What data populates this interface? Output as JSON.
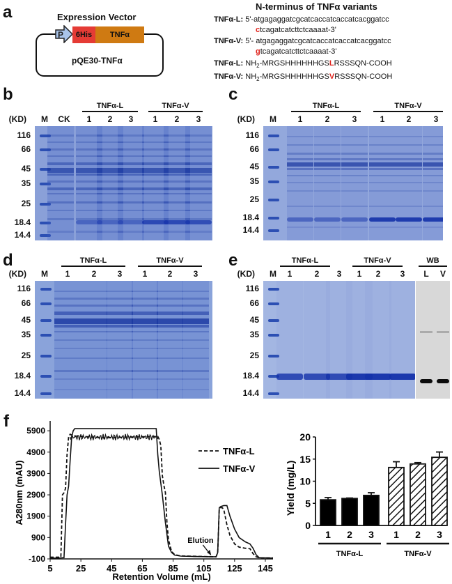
{
  "panels": {
    "a": {
      "letter": "a",
      "vector_title": "Expression Vector",
      "promoter_label": "P",
      "tag_label": "6His",
      "gene_label": "TNFα",
      "plasmid_name": "pQE30-TNFα",
      "colors": {
        "tag": "#e53b35",
        "gene": "#cf7a12",
        "promoter": "#a9c4ea"
      },
      "seq_title": "N-terminus of TNFα variants",
      "sequences": [
        {
          "label": "TNFα-L:",
          "line1": "5'-atgagaggatcgcatcaccatcaccatcacggatcc",
          "mut": "c",
          "line2": "tcagatcatcttctcaaaat-3'"
        },
        {
          "label": "TNFα-V:",
          "line1": "5'- atgagaggatcgcatcaccatcaccatcacggatcc",
          "mut": "g",
          "line2": "tcagatcatcttctcaaaat-3'"
        }
      ],
      "peptides": [
        {
          "label": "TNFα-L:",
          "prefix": "NH",
          "sub": "2",
          "pre": "-MRGSHHHHHHGS",
          "mut": "L",
          "post": "RSSSQN-COOH"
        },
        {
          "label": "TNFα-V:",
          "prefix": "NH",
          "sub": "2",
          "pre": "-MRGSHHHHHHGS",
          "mut": "V",
          "post": "RSSSQN-COOH"
        }
      ]
    },
    "b": {
      "letter": "b",
      "unit": "(KD)",
      "marker": "M",
      "ck": "CK",
      "groups": [
        "TNFα-L",
        "TNFα-V"
      ],
      "lanes": [
        "1",
        "2",
        "3",
        "1",
        "2",
        "3"
      ]
    },
    "c": {
      "letter": "c",
      "unit": "(KD)",
      "marker": "M",
      "groups": [
        "TNFα-L",
        "TNFα-V"
      ],
      "lanes": [
        "1",
        "2",
        "3",
        "1",
        "2",
        "3"
      ]
    },
    "d": {
      "letter": "d",
      "unit": "(KD)",
      "marker": "M",
      "groups": [
        "TNFα-L",
        "TNFα-V"
      ],
      "lanes": [
        "1",
        "2",
        "3",
        "1",
        "2",
        "3"
      ]
    },
    "e": {
      "letter": "e",
      "unit": "(KD)",
      "marker": "M",
      "groups": [
        "TNFα-L",
        "TNFα-V"
      ],
      "lanes": [
        "1",
        "2",
        "3",
        "1",
        "2",
        "3"
      ],
      "wb_title": "WB",
      "wb_lanes": [
        "L",
        "V"
      ]
    },
    "f": {
      "letter": "f"
    }
  },
  "mw_markers": [
    "116",
    "66",
    "45",
    "35",
    "25",
    "18.4",
    "14.4"
  ],
  "chart_data": [
    {
      "type": "line",
      "title": "",
      "xlabel": "Retention Volume (mL)",
      "ylabel": "A280nm (mAU)",
      "xlim": [
        5,
        150
      ],
      "ylim": [
        -100,
        6100
      ],
      "xticks": [
        5,
        25,
        45,
        65,
        85,
        105,
        125,
        145
      ],
      "yticks": [
        -100,
        900,
        1900,
        2900,
        3900,
        4900,
        5900
      ],
      "grid": false,
      "legend_position": "upper-right",
      "annotation": {
        "text": "Elution",
        "x": 108,
        "y": 0
      },
      "series": [
        {
          "name": "TNFα-L",
          "style": "dashed",
          "x": [
            5,
            9,
            12,
            13,
            14,
            15,
            16,
            17,
            18,
            20,
            40,
            60,
            75,
            76,
            77,
            78,
            79,
            80,
            81,
            82,
            84,
            86,
            90,
            100,
            110,
            113,
            114,
            115,
            116,
            117,
            118,
            120,
            122,
            125,
            128,
            132,
            135,
            137,
            139,
            141,
            150
          ],
          "y": [
            -20,
            -20,
            -20,
            2900,
            3000,
            3200,
            4800,
            5600,
            5700,
            5650,
            5600,
            5650,
            5650,
            5500,
            5200,
            3800,
            3350,
            3000,
            1600,
            800,
            250,
            100,
            40,
            20,
            0,
            0,
            200,
            2200,
            2300,
            2300,
            2200,
            1500,
            1000,
            600,
            450,
            400,
            380,
            150,
            0,
            -50,
            -50
          ]
        },
        {
          "name": "TNFα-V",
          "style": "solid",
          "x": [
            5,
            10,
            14,
            15,
            16,
            17,
            18,
            19,
            20,
            21,
            22,
            40,
            60,
            73,
            74,
            75,
            76,
            78,
            80,
            82,
            84,
            86,
            90,
            100,
            110,
            113,
            114,
            115,
            116,
            118,
            120,
            122,
            125,
            128,
            132,
            135,
            137,
            139,
            141,
            150
          ],
          "y": [
            -60,
            -60,
            -40,
            1500,
            2900,
            3300,
            4500,
            5600,
            5900,
            6000,
            6000,
            6000,
            6000,
            6000,
            6000,
            4800,
            4000,
            2900,
            1600,
            500,
            200,
            80,
            30,
            10,
            0,
            0,
            200,
            2300,
            2350,
            2400,
            2400,
            1900,
            1300,
            900,
            700,
            600,
            400,
            100,
            -40,
            -60
          ]
        }
      ]
    },
    {
      "type": "bar",
      "title": "",
      "xlabel": "",
      "ylabel": "Yield (mg/L)",
      "ylim": [
        0,
        20
      ],
      "yticks": [
        0,
        5,
        10,
        15,
        20
      ],
      "categories": [
        "1",
        "2",
        "3",
        "1",
        "2",
        "3"
      ],
      "group_labels": [
        "TNFα-L",
        "TNFα-V"
      ],
      "series": [
        {
          "name": "TNFα-L",
          "fill": "solid-black",
          "values": [
            5.8,
            6.1,
            6.8
          ],
          "errors": [
            0.5,
            0.1,
            0.6
          ]
        },
        {
          "name": "TNFα-V",
          "fill": "hatched",
          "values": [
            13.1,
            13.9,
            15.4
          ],
          "errors": [
            1.3,
            0.3,
            1.2
          ]
        }
      ]
    }
  ]
}
